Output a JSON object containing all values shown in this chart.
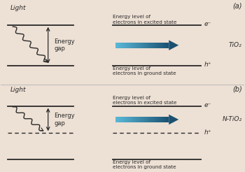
{
  "bg_color": "#ede0d4",
  "line_color": "#2a2a2a",
  "divider_color": "#bbbbbb",
  "text_color": "#2a2a2a",
  "label_a": "(a)",
  "label_b": "(b)",
  "tio2_label": "TiO₂",
  "ntio2_label": "N-TiO₂",
  "light_label": "Light",
  "energy_gap_label": "Energy\ngap",
  "excited_label": "Energy level of\nelectrons in excited state",
  "ground_label": "Energy level of\nelectrons in ground state",
  "e_minus": "e⁻",
  "h_plus": "h⁺",
  "arrow_body_color": "#5ab8d8",
  "arrow_head_color": "#1a5070"
}
